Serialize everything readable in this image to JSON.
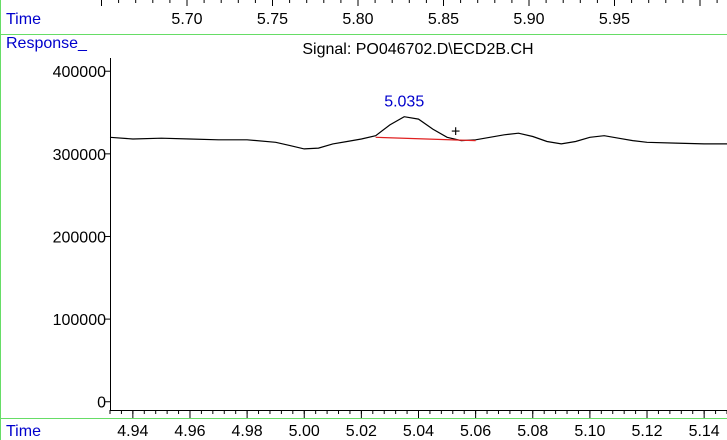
{
  "top_axis": {
    "label": "Time",
    "ticks": [
      "5.70",
      "5.75",
      "5.80",
      "5.85",
      "5.90",
      "5.95"
    ]
  },
  "signal_title": "Signal: PO046702.D\\ECD2B.CH",
  "colors": {
    "trace": "#000000",
    "baseline": "#e02020",
    "axis_title": "#0000cc",
    "frame": "#66dd66"
  },
  "chart_data": {
    "type": "line",
    "title": "Signal: PO046702.D\\ECD2B.CH",
    "xlabel": "Time",
    "ylabel": "Response_",
    "xlim": [
      4.932,
      5.148
    ],
    "ylim": [
      -10000,
      416000
    ],
    "x_ticks": [
      "4.94",
      "4.96",
      "4.98",
      "5.00",
      "5.02",
      "5.04",
      "5.06",
      "5.08",
      "5.10",
      "5.12",
      "5.14"
    ],
    "x_tick_values": [
      4.94,
      4.96,
      4.98,
      5.0,
      5.02,
      5.04,
      5.06,
      5.08,
      5.1,
      5.12,
      5.14
    ],
    "y_ticks": [
      "400000",
      "300000",
      "200000",
      "100000",
      "0"
    ],
    "y_tick_values": [
      400000,
      300000,
      200000,
      100000,
      0
    ],
    "grid": false,
    "series": [
      {
        "x": [
          4.932,
          4.94,
          4.95,
          4.96,
          4.97,
          4.98,
          4.99,
          4.995,
          5.0,
          5.005,
          5.01,
          5.015,
          5.02,
          5.025,
          5.03,
          5.035,
          5.04,
          5.045,
          5.05,
          5.055,
          5.06,
          5.065,
          5.07,
          5.075,
          5.08,
          5.085,
          5.09,
          5.095,
          5.1,
          5.105,
          5.11,
          5.115,
          5.12,
          5.13,
          5.14,
          5.148
        ],
        "y": [
          320000,
          318000,
          319000,
          318000,
          317000,
          317000,
          314000,
          310000,
          306000,
          307000,
          312000,
          315000,
          318000,
          322000,
          335000,
          345000,
          342000,
          330000,
          320000,
          316000,
          317000,
          320000,
          323000,
          325000,
          321000,
          315000,
          312000,
          315000,
          320000,
          322000,
          319000,
          316000,
          314000,
          313000,
          312000,
          312000
        ]
      }
    ],
    "annotations": [
      {
        "text": "5.035",
        "x": 5.035,
        "y": 345000
      },
      {
        "text": "+",
        "x": 5.053,
        "y": 328000
      }
    ],
    "baseline": {
      "x": [
        5.025,
        5.06
      ],
      "y": [
        320000,
        316000
      ]
    }
  }
}
